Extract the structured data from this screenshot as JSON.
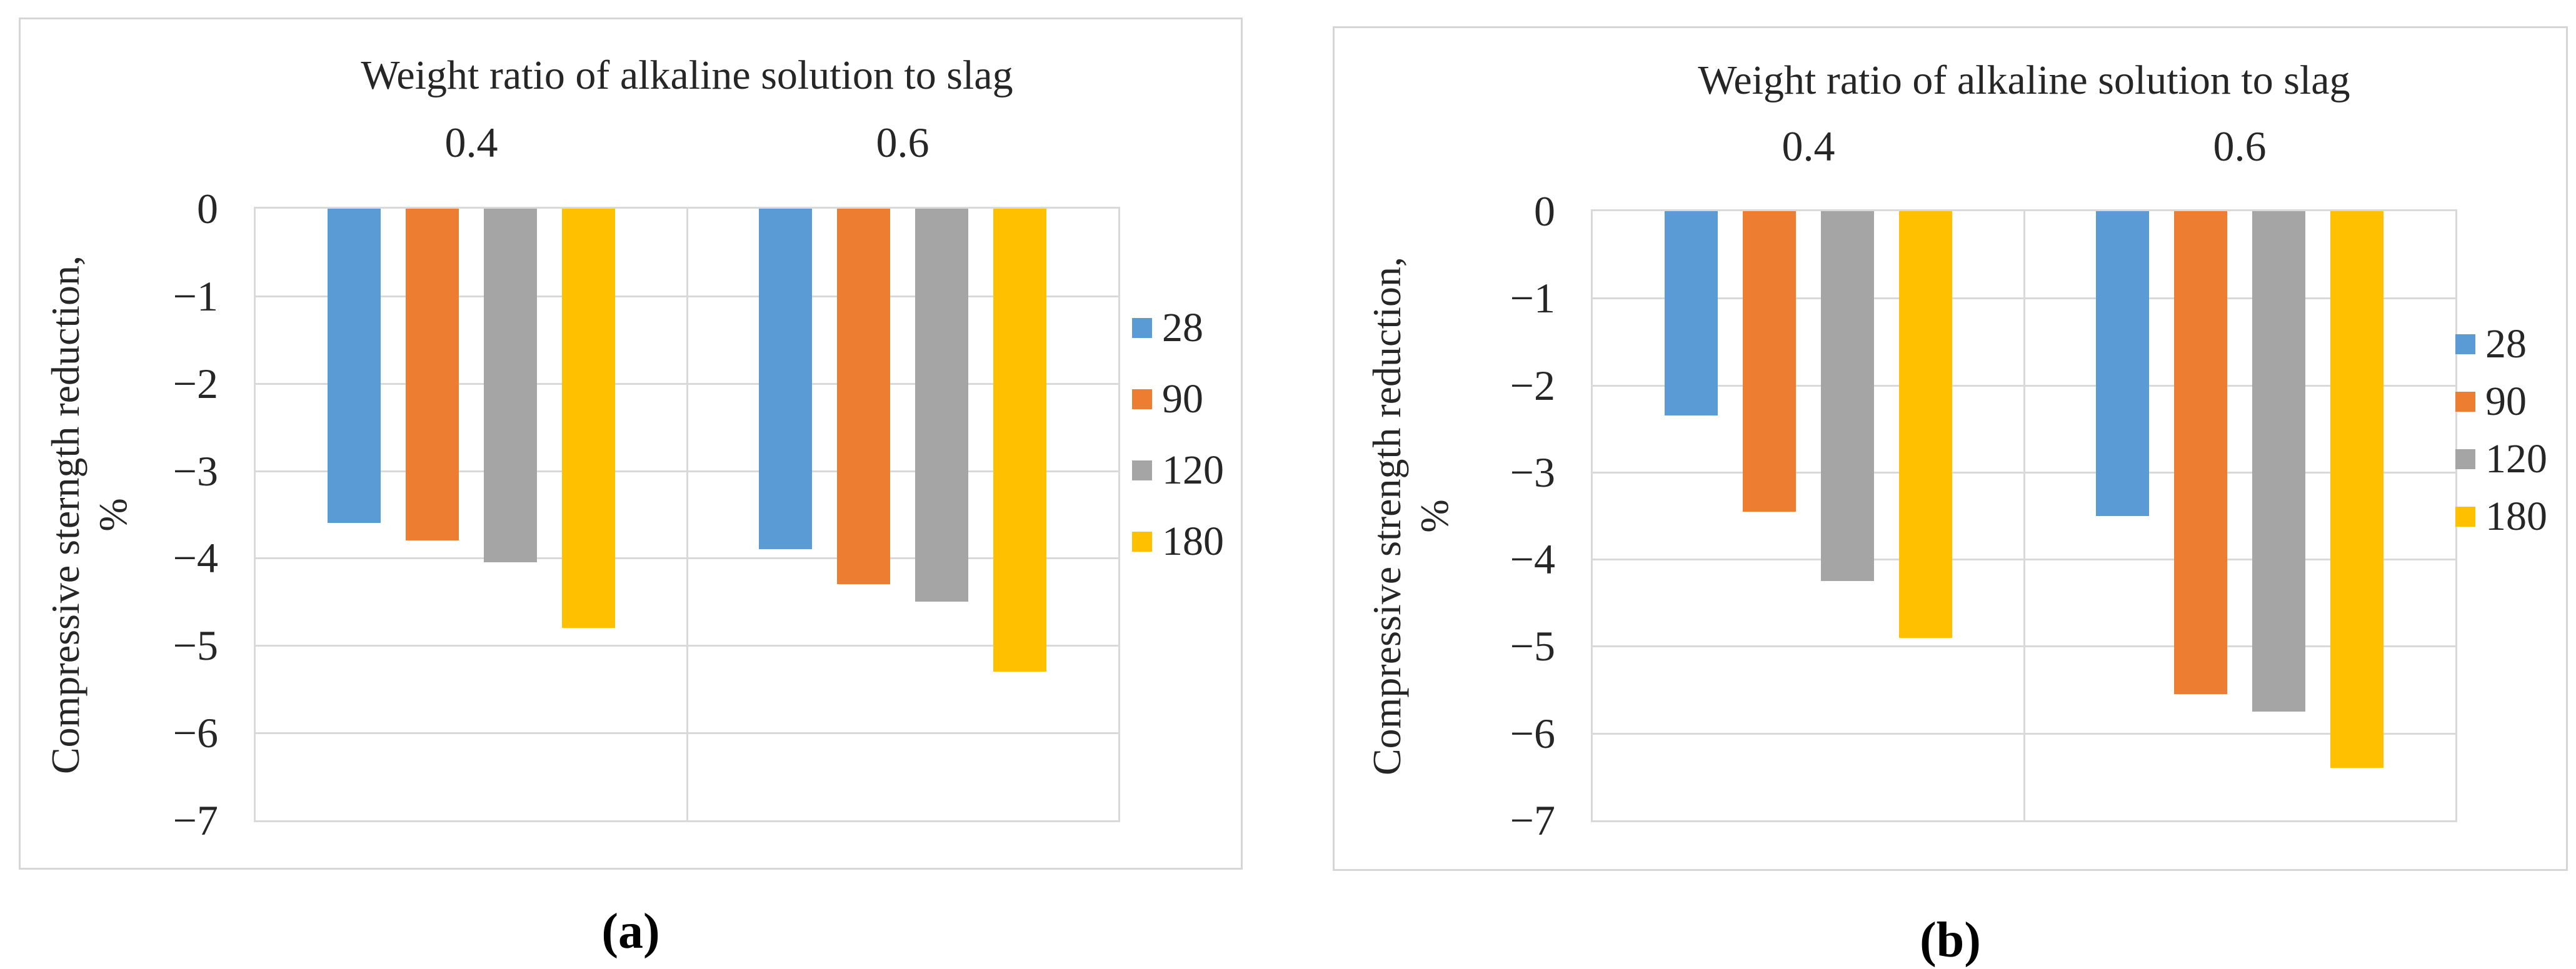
{
  "chart_data": [
    {
      "type": "bar",
      "caption": "(a)",
      "title": "Weight ratio of alkaline solution to slag",
      "ylabel_line1": "Compressive sterngth reduction,",
      "ylabel_line2": "%",
      "categories": [
        "0.4",
        "0.6"
      ],
      "series": [
        {
          "name": "28",
          "color": "#5B9BD5",
          "values": [
            -3.6,
            -3.9
          ]
        },
        {
          "name": "90",
          "color": "#ED7D31",
          "values": [
            -3.8,
            -4.3
          ]
        },
        {
          "name": "120",
          "color": "#A5A5A5",
          "values": [
            -4.05,
            -4.5
          ]
        },
        {
          "name": "180",
          "color": "#FFC000",
          "values": [
            -4.8,
            -5.3
          ]
        }
      ],
      "ylim": [
        0,
        -7
      ],
      "ytick_labels": [
        "0",
        "−1",
        "−2",
        "−3",
        "−4",
        "−5",
        "−6",
        "−7"
      ],
      "grid": "on",
      "legend_position": "right"
    },
    {
      "type": "bar",
      "caption": "(b)",
      "title": "Weight ratio of alkaline solution to slag",
      "ylabel_line1": "Compressive strength reduction,",
      "ylabel_line2": "%",
      "categories": [
        "0.4",
        "0.6"
      ],
      "series": [
        {
          "name": "28",
          "color": "#5B9BD5",
          "values": [
            -2.35,
            -3.5
          ]
        },
        {
          "name": "90",
          "color": "#ED7D31",
          "values": [
            -3.45,
            -5.55
          ]
        },
        {
          "name": "120",
          "color": "#A5A5A5",
          "values": [
            -4.25,
            -5.75
          ]
        },
        {
          "name": "180",
          "color": "#FFC000",
          "values": [
            -4.9,
            -6.4
          ]
        }
      ],
      "ylim": [
        0,
        -7
      ],
      "ytick_labels": [
        "0",
        "−1",
        "−2",
        "−3",
        "−4",
        "−5",
        "−6",
        "−7"
      ],
      "grid": "on",
      "legend_position": "right"
    }
  ]
}
